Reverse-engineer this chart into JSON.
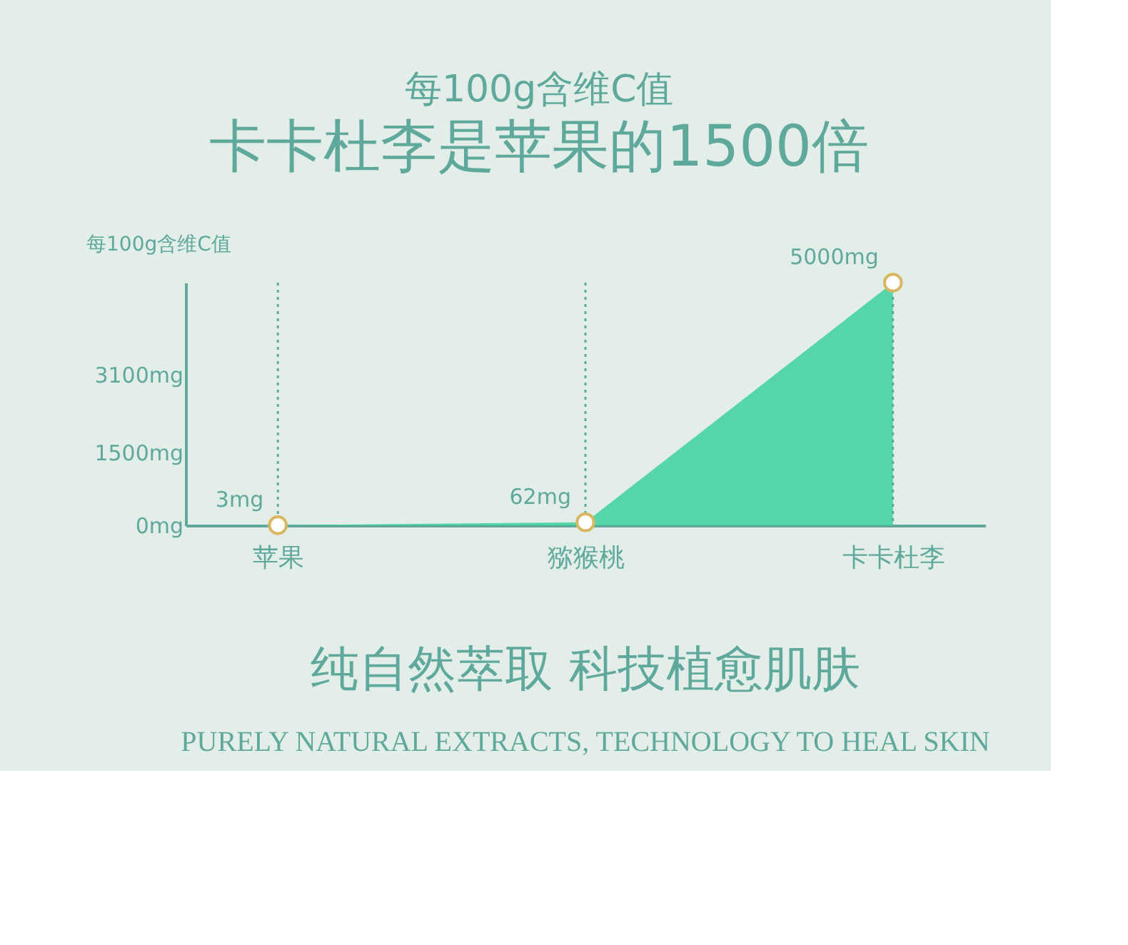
{
  "chart_data": {
    "type": "area",
    "title": "每100g含维C值",
    "subtitle": "卡卡杜李是苹果的1500倍",
    "ylabel": "每100g含维C值",
    "categories": [
      "苹果",
      "猕猴桃",
      "卡卡杜李"
    ],
    "values": [
      3,
      62,
      5000
    ],
    "value_labels": [
      "3mg",
      "62mg",
      "5000mg"
    ],
    "color": "#45d1a2",
    "marker": "circle",
    "ylim": [
      0,
      5000
    ],
    "yticks": [
      {
        "value": 0,
        "label": "0mg"
      },
      {
        "value": 1500,
        "label": "1500mg"
      },
      {
        "value": 3100,
        "label": "3100mg"
      }
    ],
    "grid": false,
    "ref_lines": [
      {
        "axis": "x",
        "value": "苹果",
        "line_style": "dotted"
      },
      {
        "axis": "x",
        "value": "猕猴桃",
        "line_style": "dotted"
      },
      {
        "axis": "x",
        "value": "卡卡杜李",
        "line_style": "dotted"
      }
    ],
    "annotations": [
      "纯自然萃取 科技植愈肌肤",
      "PURELY NATURAL EXTRACTS, TECHNOLOGY TO HEAL SKIN"
    ]
  }
}
